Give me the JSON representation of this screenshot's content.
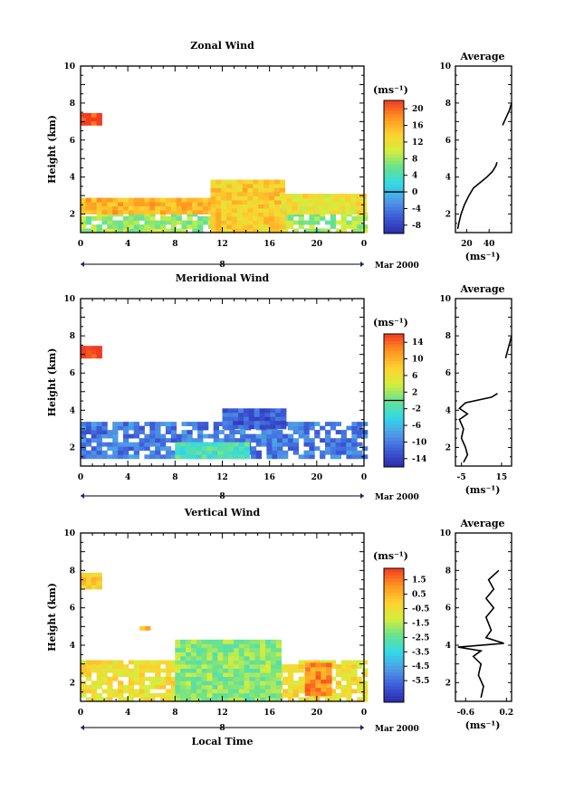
{
  "panels": [
    {
      "title": "Zonal Wind",
      "ylabel": "Height (km)",
      "unit": "(ms⁻¹)",
      "avg_title": "Average",
      "avg_unit": "(ms⁻¹)",
      "yticks": [
        "2",
        "4",
        "6",
        "8",
        "10"
      ],
      "xticks": [
        "0",
        "4",
        "8",
        "12",
        "16",
        "20",
        "0"
      ],
      "date_mark": "8",
      "date_label": "Mar 2000",
      "cbar_ticks": [
        "-8",
        "-4",
        "0",
        "4",
        "8",
        "12",
        "16",
        "20"
      ],
      "avg_yticks": [
        "2",
        "4",
        "6",
        "8",
        "10"
      ],
      "avg_xticks": [
        "20",
        "40"
      ]
    },
    {
      "title": "Meridional Wind",
      "ylabel": "Height (km)",
      "unit": "(ms⁻¹)",
      "avg_title": "Average",
      "avg_unit": "(ms⁻¹)",
      "yticks": [
        "2",
        "4",
        "6",
        "8",
        "10"
      ],
      "xticks": [
        "0",
        "4",
        "8",
        "12",
        "16",
        "20",
        "0"
      ],
      "date_mark": "8",
      "date_label": "Mar 2000",
      "cbar_ticks": [
        "-14",
        "-10",
        "-6",
        "-2",
        "2",
        "6",
        "10",
        "14"
      ],
      "avg_yticks": [
        "2",
        "4",
        "6",
        "8",
        "10"
      ],
      "avg_xticks": [
        "-5",
        "15"
      ]
    },
    {
      "title": "Vertical Wind",
      "ylabel": "Height (km)",
      "unit": "(ms⁻¹)",
      "avg_title": "Average",
      "avg_unit": "(ms⁻¹)",
      "yticks": [
        "2",
        "4",
        "6",
        "8",
        "10"
      ],
      "xticks": [
        "0",
        "4",
        "8",
        "12",
        "16",
        "20",
        "0"
      ],
      "date_mark": "8",
      "date_label": "Mar 2000",
      "cbar_ticks": [
        "-5.5",
        "-4.5",
        "-3.5",
        "-2.5",
        "-1.5",
        "-0.5",
        "0.5",
        "1.5"
      ],
      "avg_yticks": [
        "2",
        "4",
        "6",
        "8",
        "10"
      ],
      "avg_xticks": [
        "-0.6",
        "0.2"
      ],
      "xlabel": "Local Time"
    }
  ],
  "chart_data": [
    {
      "type": "heatmap",
      "title": "Zonal Wind",
      "xlabel": "",
      "ylabel": "Height (km)",
      "xlim": [
        0,
        24
      ],
      "ylim": [
        1,
        10
      ],
      "colorbar": {
        "label": "(ms⁻¹)",
        "range": [
          -10,
          22
        ],
        "ticks": [
          -8,
          -4,
          0,
          4,
          8,
          12,
          16,
          20
        ]
      },
      "regions": [
        {
          "x": [
            0,
            24
          ],
          "y": [
            1.0,
            2.0
          ],
          "value": 8
        },
        {
          "x": [
            0,
            11
          ],
          "y": [
            2.0,
            2.8
          ],
          "value": 16
        },
        {
          "x": [
            11,
            17
          ],
          "y": [
            1.0,
            3.8
          ],
          "value": 14
        },
        {
          "x": [
            17,
            24
          ],
          "y": [
            2.0,
            2.9
          ],
          "value": 12
        },
        {
          "x": [
            0,
            1.5
          ],
          "y": [
            6.8,
            7.4
          ],
          "value": 22
        }
      ],
      "average_profile": {
        "xlabel": "(ms⁻¹)",
        "xlim": [
          10,
          60
        ],
        "height": [
          1.2,
          1.5,
          2.0,
          2.5,
          3.0,
          3.4,
          3.7,
          4.0,
          4.3,
          4.6,
          4.8,
          6.8,
          7.2,
          7.6,
          8.0
        ],
        "value": [
          12,
          13,
          15,
          18,
          22,
          26,
          32,
          38,
          43,
          46,
          47,
          52,
          55,
          58,
          60
        ]
      }
    },
    {
      "type": "heatmap",
      "title": "Meridional Wind",
      "xlabel": "",
      "ylabel": "Height (km)",
      "xlim": [
        0,
        24
      ],
      "ylim": [
        1,
        10
      ],
      "colorbar": {
        "label": "(ms⁻¹)",
        "range": [
          -16,
          16
        ],
        "ticks": [
          -14,
          -10,
          -6,
          -2,
          2,
          6,
          10,
          14
        ]
      },
      "regions": [
        {
          "x": [
            0,
            24
          ],
          "y": [
            1.4,
            3.2
          ],
          "value": -10
        },
        {
          "x": [
            8,
            14
          ],
          "y": [
            1.4,
            2.2
          ],
          "value": -2
        },
        {
          "x": [
            12,
            17
          ],
          "y": [
            3.0,
            4.0
          ],
          "value": -12
        },
        {
          "x": [
            0,
            1.5
          ],
          "y": [
            6.8,
            7.4
          ],
          "value": 16
        }
      ],
      "average_profile": {
        "xlabel": "(ms⁻¹)",
        "xlim": [
          -8,
          20
        ],
        "height": [
          1.2,
          1.6,
          2.0,
          2.5,
          3.0,
          3.5,
          3.8,
          4.1,
          4.4,
          4.7,
          4.9,
          6.8,
          7.2,
          7.6,
          8.0
        ],
        "value": [
          -4,
          -2,
          -3,
          -5,
          -4,
          -6,
          -2,
          -6,
          -3,
          10,
          13,
          17,
          18,
          19,
          20
        ]
      }
    },
    {
      "type": "heatmap",
      "title": "Vertical Wind",
      "xlabel": "Local Time",
      "ylabel": "Height (km)",
      "xlim": [
        0,
        24
      ],
      "ylim": [
        1,
        10
      ],
      "colorbar": {
        "label": "(ms⁻¹)",
        "range": [
          -7,
          2.3
        ],
        "ticks": [
          -5.5,
          -4.5,
          -3.5,
          -2.5,
          -1.5,
          -0.5,
          0.5,
          1.5
        ]
      },
      "regions": [
        {
          "x": [
            0,
            24
          ],
          "y": [
            1.0,
            3.0
          ],
          "value": -0.5
        },
        {
          "x": [
            8,
            17
          ],
          "y": [
            1.0,
            4.2
          ],
          "value": -2.0
        },
        {
          "x": [
            19,
            21
          ],
          "y": [
            1.3,
            3.0
          ],
          "value": 1.2
        },
        {
          "x": [
            0,
            1.5
          ],
          "y": [
            7.0,
            7.8
          ],
          "value": 0.0
        },
        {
          "x": [
            5,
            5.5
          ],
          "y": [
            4.8,
            5.0
          ],
          "value": 0.8
        }
      ],
      "average_profile": {
        "xlabel": "(ms⁻¹)",
        "xlim": [
          -0.8,
          0.3
        ],
        "height": [
          1.2,
          1.8,
          2.4,
          3.0,
          3.4,
          3.7,
          3.9,
          4.1,
          4.4,
          4.8,
          5.5,
          6.0,
          6.5,
          7.0,
          7.5,
          8.0
        ],
        "value": [
          -0.3,
          -0.25,
          -0.35,
          -0.3,
          -0.45,
          -0.3,
          -0.75,
          0.15,
          -0.2,
          -0.1,
          -0.2,
          -0.05,
          -0.2,
          -0.05,
          -0.15,
          0.05
        ]
      }
    }
  ]
}
